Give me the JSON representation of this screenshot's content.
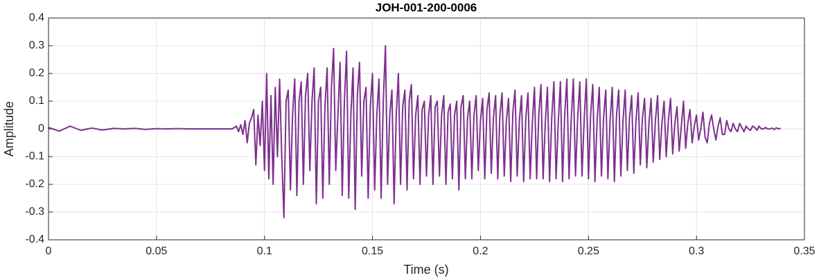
{
  "chart_data": {
    "type": "line",
    "title": "JOH-001-200-0006",
    "x_label": "Time (s)",
    "y_label": "Amplitude",
    "color": "#7e2f8e",
    "grid": true,
    "xlim": [
      0,
      0.35
    ],
    "xticks": [
      0,
      0.05,
      0.1,
      0.15,
      0.2,
      0.25,
      0.3,
      0.35
    ],
    "ylim": [
      -0.4,
      0.4
    ],
    "yticks": [
      -0.4,
      -0.3,
      -0.2,
      -0.1,
      0,
      0.1,
      0.2,
      0.3,
      0.4
    ],
    "x": [
      0,
      0.005,
      0.01,
      0.015,
      0.02,
      0.025,
      0.03,
      0.035,
      0.04,
      0.045,
      0.05,
      0.055,
      0.06,
      0.065,
      0.07,
      0.075,
      0.08,
      0.085,
      0.087,
      0.088,
      0.089,
      0.09,
      0.091,
      0.092,
      0.093,
      0.094,
      0.095,
      0.096,
      0.097,
      0.098,
      0.099,
      0.1,
      0.101,
      0.102,
      0.103,
      0.104,
      0.105,
      0.106,
      0.107,
      0.108,
      0.109,
      0.11,
      0.111,
      0.112,
      0.113,
      0.114,
      0.115,
      0.116,
      0.117,
      0.118,
      0.119,
      0.12,
      0.121,
      0.122,
      0.123,
      0.124,
      0.125,
      0.126,
      0.127,
      0.128,
      0.129,
      0.13,
      0.131,
      0.132,
      0.133,
      0.134,
      0.135,
      0.136,
      0.137,
      0.138,
      0.139,
      0.14,
      0.141,
      0.142,
      0.143,
      0.144,
      0.145,
      0.146,
      0.147,
      0.148,
      0.149,
      0.15,
      0.151,
      0.152,
      0.153,
      0.154,
      0.155,
      0.156,
      0.157,
      0.158,
      0.159,
      0.16,
      0.161,
      0.162,
      0.163,
      0.164,
      0.165,
      0.166,
      0.167,
      0.168,
      0.169,
      0.17,
      0.171,
      0.172,
      0.173,
      0.174,
      0.175,
      0.176,
      0.177,
      0.178,
      0.179,
      0.18,
      0.181,
      0.182,
      0.183,
      0.184,
      0.185,
      0.186,
      0.187,
      0.188,
      0.189,
      0.19,
      0.191,
      0.192,
      0.193,
      0.194,
      0.195,
      0.196,
      0.197,
      0.198,
      0.199,
      0.2,
      0.201,
      0.202,
      0.203,
      0.204,
      0.205,
      0.206,
      0.207,
      0.208,
      0.209,
      0.21,
      0.211,
      0.212,
      0.213,
      0.214,
      0.215,
      0.216,
      0.217,
      0.218,
      0.219,
      0.22,
      0.221,
      0.222,
      0.223,
      0.224,
      0.225,
      0.226,
      0.227,
      0.228,
      0.229,
      0.23,
      0.231,
      0.232,
      0.233,
      0.234,
      0.235,
      0.236,
      0.237,
      0.238,
      0.239,
      0.24,
      0.241,
      0.242,
      0.243,
      0.244,
      0.245,
      0.246,
      0.247,
      0.248,
      0.249,
      0.25,
      0.251,
      0.252,
      0.253,
      0.254,
      0.255,
      0.256,
      0.257,
      0.258,
      0.259,
      0.26,
      0.261,
      0.262,
      0.263,
      0.264,
      0.265,
      0.266,
      0.267,
      0.268,
      0.269,
      0.27,
      0.271,
      0.272,
      0.273,
      0.274,
      0.275,
      0.276,
      0.277,
      0.278,
      0.279,
      0.28,
      0.281,
      0.282,
      0.283,
      0.284,
      0.285,
      0.286,
      0.287,
      0.288,
      0.289,
      0.29,
      0.291,
      0.292,
      0.293,
      0.294,
      0.295,
      0.296,
      0.297,
      0.298,
      0.299,
      0.3,
      0.301,
      0.302,
      0.303,
      0.304,
      0.305,
      0.306,
      0.307,
      0.308,
      0.309,
      0.31,
      0.311,
      0.312,
      0.313,
      0.314,
      0.315,
      0.316,
      0.317,
      0.318,
      0.319,
      0.32,
      0.321,
      0.322,
      0.323,
      0.324,
      0.325,
      0.326,
      0.327,
      0.328,
      0.329,
      0.33,
      0.331,
      0.332,
      0.333,
      0.334,
      0.335,
      0.336,
      0.337,
      0.338,
      0.339
    ],
    "values": [
      0.005,
      -0.008,
      0.01,
      -0.005,
      0.003,
      -0.004,
      0.002,
      0,
      0.002,
      -0.002,
      0.001,
      0,
      0.001,
      0,
      0,
      0,
      0,
      0,
      0.01,
      -0.01,
      0.015,
      -0.02,
      0.03,
      -0.05,
      0.02,
      0.04,
      0.07,
      -0.13,
      0.05,
      -0.06,
      0.1,
      -0.15,
      0.2,
      -0.18,
      0.12,
      -0.2,
      0.15,
      -0.1,
      0.18,
      -0.1,
      -0.32,
      0.1,
      0.14,
      -0.22,
      0.05,
      0.18,
      -0.24,
      0.1,
      0.17,
      -0.2,
      0.12,
      0.2,
      -0.15,
      0.1,
      0.22,
      -0.27,
      0.1,
      0.15,
      -0.25,
      0.08,
      0.22,
      -0.2,
      0.15,
      0.29,
      -0.15,
      0.05,
      0.24,
      -0.24,
      0.1,
      0.28,
      -0.25,
      0.05,
      0.22,
      -0.29,
      0.12,
      0.24,
      -0.17,
      0.1,
      0.15,
      -0.25,
      0.08,
      0.2,
      -0.22,
      0.05,
      0.18,
      -0.25,
      0.1,
      0.3,
      -0.2,
      0.05,
      0.14,
      -0.27,
      0.05,
      0.2,
      -0.2,
      0.08,
      0.14,
      -0.22,
      0.1,
      0.16,
      -0.18,
      0.05,
      0.12,
      -0.2,
      0.07,
      0.1,
      -0.17,
      0.05,
      0.12,
      -0.2,
      0.08,
      0.1,
      -0.17,
      0.05,
      0.12,
      -0.2,
      0.06,
      0.09,
      -0.18,
      0.05,
      0.1,
      -0.22,
      0.08,
      0.12,
      -0.18,
      0.04,
      0.1,
      -0.18,
      0.05,
      0.12,
      -0.15,
      0.03,
      0.11,
      -0.18,
      0.07,
      0.13,
      -0.16,
      0.04,
      0.12,
      -0.18,
      0.05,
      0.13,
      -0.17,
      0.03,
      0.11,
      -0.19,
      0.06,
      0.14,
      -0.17,
      0.03,
      0.12,
      -0.19,
      0.04,
      0.13,
      -0.18,
      0.02,
      0.15,
      -0.18,
      0.05,
      0.16,
      -0.18,
      0.02,
      0.15,
      -0.19,
      0.04,
      0.17,
      -0.18,
      0.02,
      0.17,
      -0.19,
      0.05,
      0.18,
      -0.18,
      0.03,
      0.18,
      -0.17,
      0.04,
      0.17,
      -0.17,
      0.03,
      0.18,
      -0.18,
      0.05,
      0.16,
      -0.19,
      0.03,
      0.15,
      -0.17,
      0.04,
      0.14,
      -0.18,
      0.03,
      0.15,
      -0.19,
      0.05,
      0.14,
      -0.17,
      0.03,
      0.14,
      -0.15,
      0.04,
      0.12,
      -0.16,
      0.03,
      0.13,
      -0.13,
      0.04,
      0.11,
      -0.14,
      0.02,
      0.11,
      -0.12,
      0.03,
      0.12,
      -0.11,
      0.02,
      0.1,
      -0.1,
      0.03,
      0.11,
      -0.09,
      0.02,
      0.08,
      -0.08,
      0.01,
      0.1,
      -0.07,
      0.02,
      0.07,
      -0.05,
      0.01,
      0.05,
      -0.04,
      0,
      0.06,
      -0.03,
      -0.05,
      0.02,
      0.05,
      0,
      -0.04,
      0.01,
      0.04,
      -0.02,
      -0.02,
      0.03,
      0,
      -0.01,
      0.02,
      0,
      -0.01,
      0.02,
      0.005,
      -0.01,
      0.01,
      0,
      -0.005,
      0.01,
      0.005,
      -0.005,
      0.01,
      0,
      0,
      0.005,
      0,
      0,
      0.003,
      -0.002,
      0.004,
      0,
      0.002
    ]
  }
}
